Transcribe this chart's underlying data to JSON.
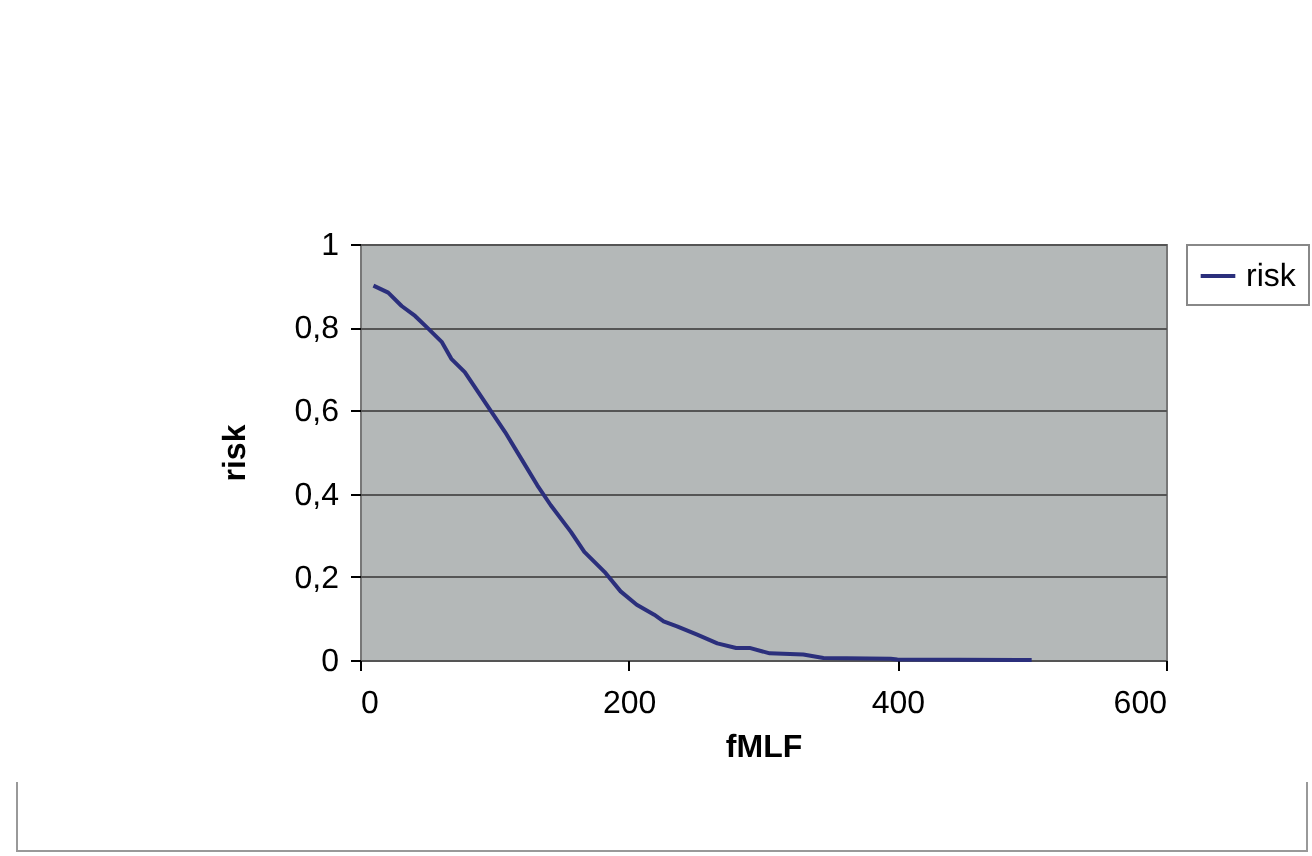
{
  "chart_data": {
    "type": "line",
    "xlabel": "fMLF",
    "ylabel": "risk",
    "x": [
      10,
      21,
      31,
      41,
      51,
      61,
      68,
      78,
      88,
      98,
      108,
      120,
      132,
      142,
      157,
      167,
      182,
      194,
      206,
      219,
      226,
      236,
      251,
      266,
      280,
      290,
      305,
      330,
      345,
      395,
      400,
      500
    ],
    "series": [
      {
        "name": "risk",
        "color": "#2b2f7c",
        "values": [
          0.9,
          0.883,
          0.851,
          0.827,
          0.796,
          0.764,
          0.724,
          0.692,
          0.644,
          0.596,
          0.548,
          0.484,
          0.42,
          0.372,
          0.308,
          0.26,
          0.212,
          0.165,
          0.133,
          0.109,
          0.093,
          0.081,
          0.061,
          0.04,
          0.029,
          0.029,
          0.016,
          0.013,
          0.005,
          0.003,
          0.001,
          0
        ]
      }
    ],
    "xlim": [
      0,
      600
    ],
    "xticks": [
      0,
      200,
      400,
      600
    ],
    "ylim": [
      0,
      1
    ],
    "yticks": [
      0,
      {
        "value": 0.2,
        "label": "0,2"
      },
      {
        "value": 0.4,
        "label": "0,4"
      },
      {
        "value": 0.6,
        "label": "0,6"
      },
      {
        "value": 0.8,
        "label": "0,8"
      },
      1
    ],
    "grid": "y",
    "legend": "right",
    "marker": "none",
    "line_style": "solid"
  }
}
